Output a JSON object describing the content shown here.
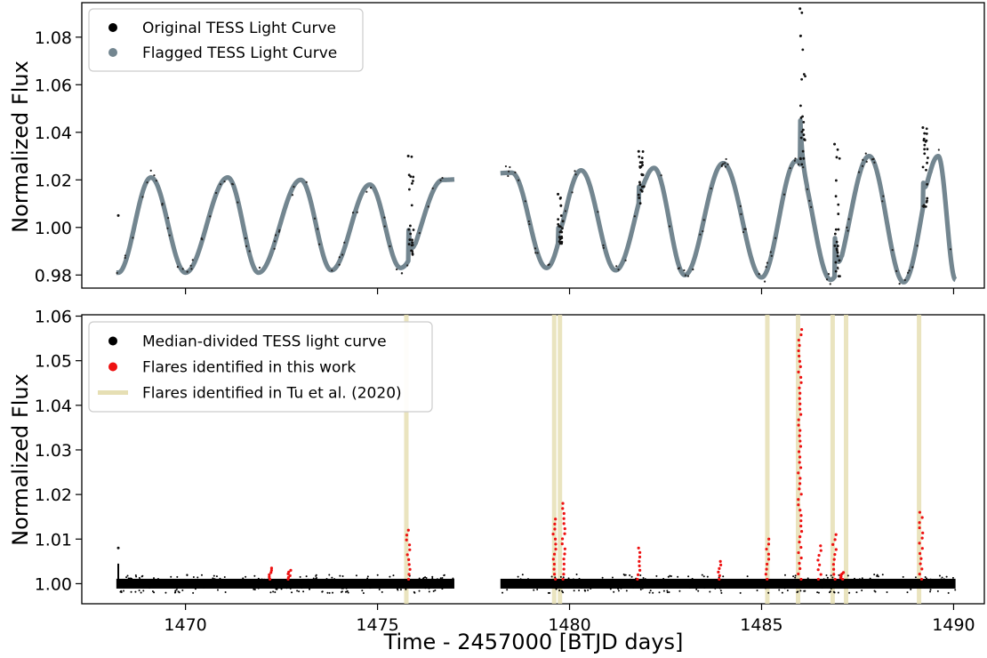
{
  "chart_data": [
    {
      "panel": "top",
      "type": "scatter",
      "title": "",
      "xlabel": "",
      "ylabel": "Normalized Flux",
      "xlim": [
        1467.3,
        1490.8
      ],
      "ylim": [
        0.9745,
        1.0945
      ],
      "yticks": [
        0.98,
        1.0,
        1.02,
        1.04,
        1.06,
        1.08
      ],
      "ytick_labels": [
        "0.98",
        "1.00",
        "1.02",
        "1.04",
        "1.06",
        "1.08"
      ],
      "xticks": [
        1470,
        1475,
        1480,
        1485,
        1490
      ],
      "legend_position": "upper-left",
      "legend": [
        {
          "label": "Original TESS Light Curve",
          "color": "#000000",
          "marker": "dot"
        },
        {
          "label": "Flagged TESS Light Curve",
          "color": "#738690",
          "marker": "dot"
        }
      ],
      "segments": [
        [
          1468.2,
          1477.0
        ],
        [
          1478.2,
          1490.05
        ]
      ],
      "peaks": [
        {
          "x": 1469.1,
          "y": 1.021
        },
        {
          "x": 1471.1,
          "y": 1.021
        },
        {
          "x": 1473.0,
          "y": 1.02
        },
        {
          "x": 1474.8,
          "y": 1.018
        },
        {
          "x": 1476.7,
          "y": 1.02
        },
        {
          "x": 1478.5,
          "y": 1.023
        },
        {
          "x": 1480.3,
          "y": 1.024
        },
        {
          "x": 1482.2,
          "y": 1.025
        },
        {
          "x": 1484.0,
          "y": 1.027
        },
        {
          "x": 1485.9,
          "y": 1.028
        },
        {
          "x": 1487.8,
          "y": 1.03
        },
        {
          "x": 1489.6,
          "y": 1.03
        }
      ],
      "troughs": [
        {
          "x": 1468.25,
          "y": 0.981
        },
        {
          "x": 1470.0,
          "y": 0.981
        },
        {
          "x": 1471.9,
          "y": 0.981
        },
        {
          "x": 1473.8,
          "y": 0.982
        },
        {
          "x": 1475.6,
          "y": 0.983
        },
        {
          "x": 1479.4,
          "y": 0.983
        },
        {
          "x": 1481.2,
          "y": 0.982
        },
        {
          "x": 1483.0,
          "y": 0.98
        },
        {
          "x": 1485.0,
          "y": 0.979
        },
        {
          "x": 1486.8,
          "y": 0.978
        },
        {
          "x": 1488.7,
          "y": 0.977
        },
        {
          "x": 1490.05,
          "y": 0.978
        }
      ],
      "flare_spikes": [
        {
          "x": 1475.8,
          "peak": 1.03
        },
        {
          "x": 1479.7,
          "peak": 1.014
        },
        {
          "x": 1481.8,
          "peak": 1.032
        },
        {
          "x": 1486.0,
          "peak": 1.092
        },
        {
          "x": 1486.9,
          "peak": 1.035
        },
        {
          "x": 1489.2,
          "peak": 1.042
        }
      ]
    },
    {
      "panel": "bottom",
      "type": "scatter",
      "title": "",
      "xlabel": "Time - 2457000 [BTJD days]",
      "ylabel": "Normalized Flux",
      "xlim": [
        1467.3,
        1490.8
      ],
      "ylim": [
        0.9955,
        1.0603
      ],
      "yticks": [
        1.0,
        1.01,
        1.02,
        1.03,
        1.04,
        1.05,
        1.06
      ],
      "ytick_labels": [
        "1.00",
        "1.01",
        "1.02",
        "1.03",
        "1.04",
        "1.05",
        "1.06"
      ],
      "xticks": [
        1470,
        1475,
        1480,
        1485,
        1490
      ],
      "xtick_labels": [
        "1470",
        "1475",
        "1480",
        "1485",
        "1490"
      ],
      "legend_position": "upper-left",
      "legend": [
        {
          "label": "Median-divided  TESS light curve",
          "color": "#000000",
          "marker": "dot"
        },
        {
          "label": "Flares identified in this work",
          "color": "#ee1111",
          "marker": "dot"
        },
        {
          "label": "Flares identified in Tu et al. (2020)",
          "color": "#e6dfb4",
          "marker": "line"
        }
      ],
      "segments": [
        [
          1468.2,
          1477.0
        ],
        [
          1478.2,
          1490.05
        ]
      ],
      "tu_flares_x": [
        1475.75,
        1479.6,
        1479.75,
        1485.15,
        1485.95,
        1486.85,
        1487.2,
        1489.1
      ],
      "flares_this_work": [
        {
          "x": 1472.2,
          "peak": 1.0035
        },
        {
          "x": 1472.7,
          "peak": 1.003
        },
        {
          "x": 1475.8,
          "peak": 1.012
        },
        {
          "x": 1479.6,
          "peak": 1.0145
        },
        {
          "x": 1479.85,
          "peak": 1.018
        },
        {
          "x": 1481.8,
          "peak": 1.008
        },
        {
          "x": 1483.9,
          "peak": 1.005
        },
        {
          "x": 1485.15,
          "peak": 1.01
        },
        {
          "x": 1486.0,
          "peak": 1.057
        },
        {
          "x": 1486.5,
          "peak": 1.0085
        },
        {
          "x": 1486.9,
          "peak": 1.011
        },
        {
          "x": 1487.1,
          "peak": 1.0025
        },
        {
          "x": 1489.15,
          "peak": 1.016
        }
      ]
    }
  ]
}
